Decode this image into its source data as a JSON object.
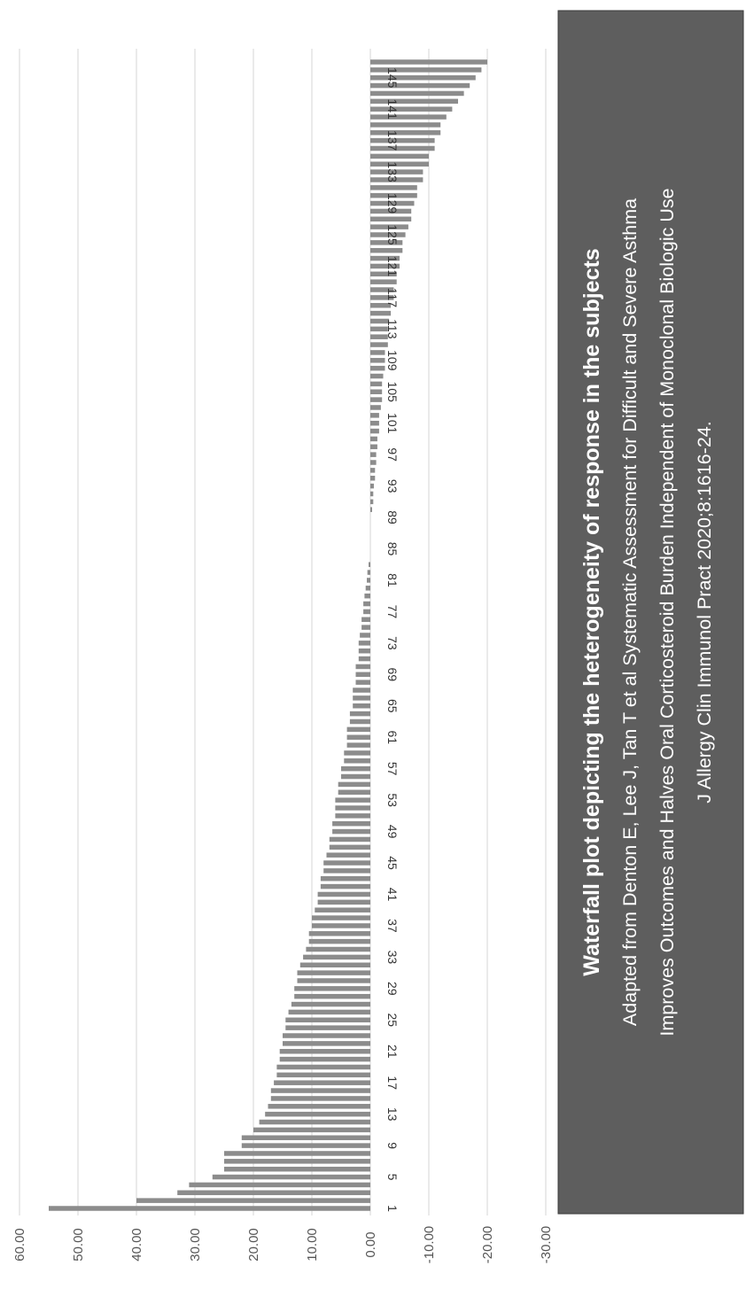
{
  "caption": {
    "title": "Waterfall plot depicting the heterogeneity of response in the subjects",
    "line1": "Adapted from Denton E, Lee J, Tan T et al   Systematic Assessment for Difficult and Severe Asthma",
    "line2": "Improves Outcomes and Halves Oral Corticosteroid Burden Independent of Monoclonal Biologic Use",
    "line3": "J Allergy Clin Immunol Pract 2020;8:1616-24."
  },
  "colors": {
    "bar": "#8c8c8c",
    "grid": "#d4d4d4",
    "caption_bg": "#5e5e5e",
    "caption_text": "#ffffff"
  },
  "chart_data": {
    "type": "bar",
    "orientation": "horizontal-rotated",
    "title": "",
    "xlabel": "",
    "ylabel": "",
    "ylim": [
      -30,
      60
    ],
    "grid": true,
    "legend": "none",
    "y_ticks": [
      "60.00",
      "50.00",
      "40.00",
      "30.00",
      "20.00",
      "10.00",
      "0.00",
      "-10.00",
      "-20.00",
      "-30.00"
    ],
    "category_tick_labels": [
      "1",
      "5",
      "9",
      "13",
      "17",
      "21",
      "25",
      "29",
      "33",
      "37",
      "41",
      "45",
      "49",
      "53",
      "57",
      "61",
      "65",
      "69",
      "73",
      "77",
      "81",
      "85",
      "89",
      "93",
      "97",
      "101",
      "105",
      "109",
      "113",
      "117",
      "121",
      "125",
      "129",
      "133",
      "137",
      "141",
      "145"
    ],
    "categories_count": 147,
    "values": [
      55,
      40,
      33,
      31,
      27,
      25,
      25,
      25,
      22,
      22,
      20,
      19,
      18,
      17.5,
      17,
      17,
      16.5,
      16,
      16,
      15.5,
      15.5,
      15,
      15,
      14.5,
      14.5,
      14,
      13.5,
      13,
      13,
      12.5,
      12.5,
      12,
      11.5,
      11,
      10.5,
      10.5,
      10,
      10,
      9.5,
      9,
      9,
      8.5,
      8.5,
      8,
      8,
      7.5,
      7,
      7,
      6.5,
      6.5,
      6,
      6,
      6,
      5.5,
      5.5,
      5,
      5,
      4.5,
      4.5,
      4,
      4,
      4,
      3.5,
      3.5,
      3,
      3,
      3,
      2.5,
      2.5,
      2.5,
      2,
      2,
      2,
      1.8,
      1.5,
      1.5,
      1.2,
      1.2,
      1,
      0.8,
      0.6,
      0.5,
      0.3,
      0,
      0,
      0,
      0,
      0,
      0,
      -0.3,
      -0.5,
      -0.5,
      -0.6,
      -0.8,
      -0.8,
      -1,
      -1,
      -1.2,
      -1.2,
      -1.5,
      -1.5,
      -1.5,
      -1.8,
      -2,
      -2,
      -2,
      -2.2,
      -2.5,
      -2.5,
      -2.5,
      -3,
      -3,
      -3,
      -3.2,
      -3.5,
      -3.5,
      -4,
      -4,
      -4.5,
      -4.5,
      -5,
      -5,
      -5.5,
      -5.5,
      -6,
      -6.5,
      -7,
      -7,
      -7.5,
      -8,
      -8,
      -9,
      -9,
      -10,
      -10,
      -11,
      -11,
      -12,
      -12,
      -13,
      -14,
      -15,
      -16,
      -17,
      -18,
      -19,
      -20
    ]
  }
}
